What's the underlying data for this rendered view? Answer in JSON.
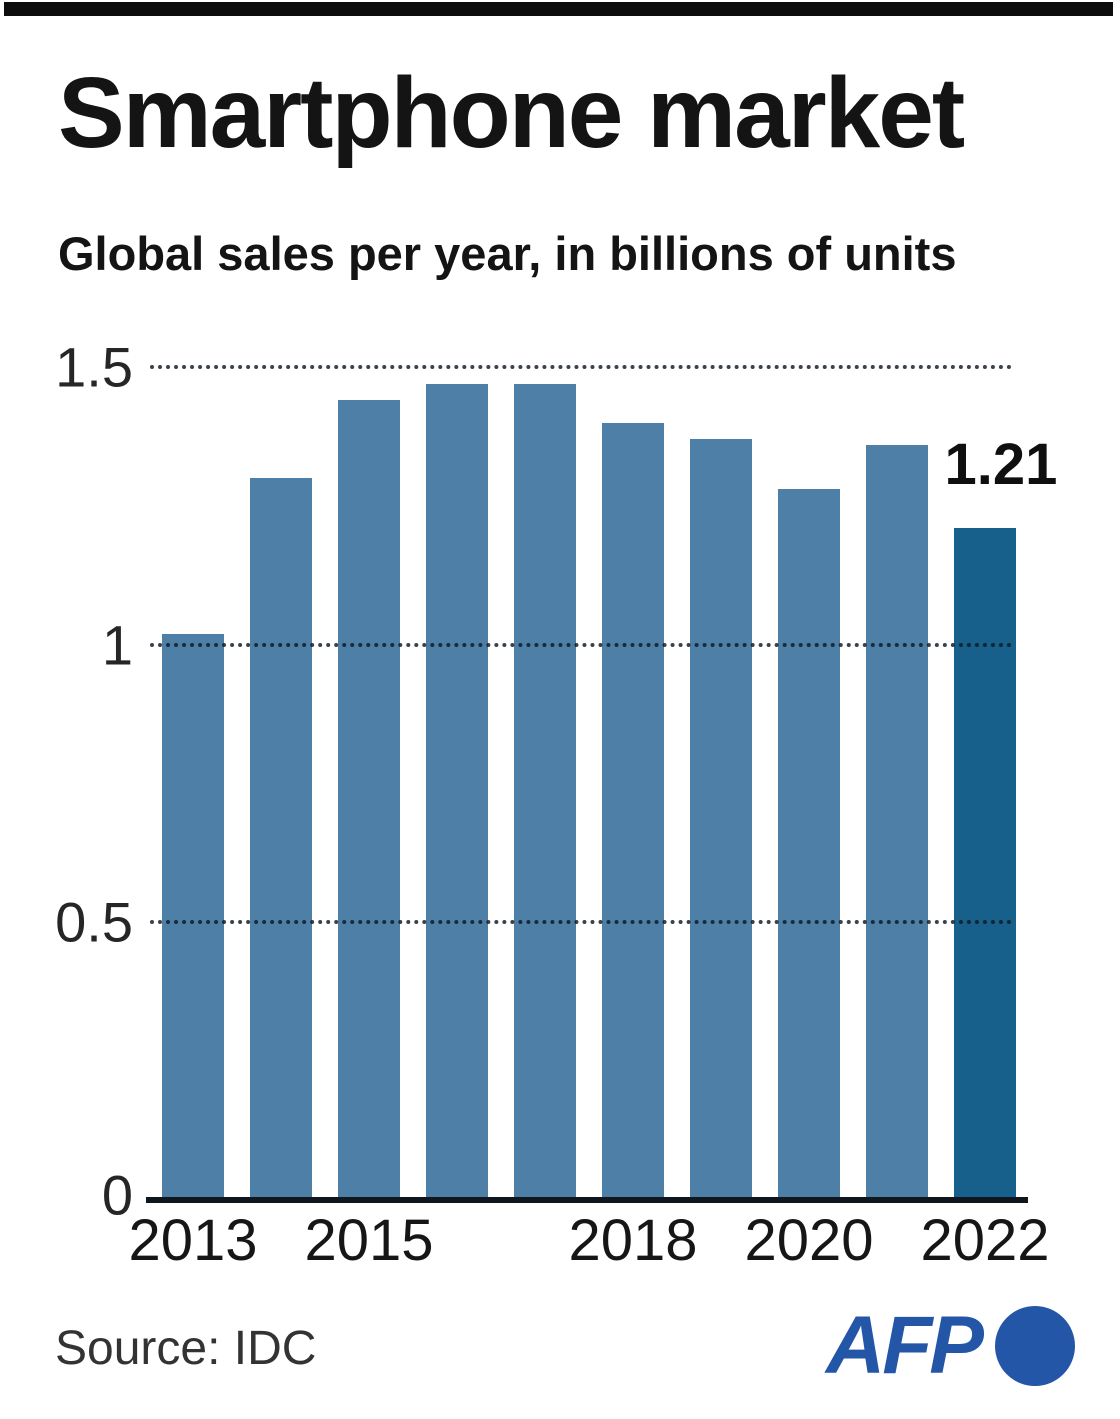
{
  "header": {
    "title": "Smartphone market",
    "subtitle": "Global sales per year, in billions of units"
  },
  "chart_data": {
    "type": "bar",
    "title": "Smartphone market",
    "subtitle": "Global sales per year, in billions of units",
    "categories": [
      "2013",
      "2014",
      "2015",
      "2016",
      "2017",
      "2018",
      "2019",
      "2020",
      "2021",
      "2022"
    ],
    "values": [
      1.02,
      1.3,
      1.44,
      1.47,
      1.47,
      1.4,
      1.37,
      1.28,
      1.36,
      1.21
    ],
    "unit": "billions of units",
    "ylim": [
      0,
      1.55
    ],
    "yticks": [
      {
        "value": 0,
        "label": "0"
      },
      {
        "value": 0.5,
        "label": "0.5"
      },
      {
        "value": 1,
        "label": "1"
      },
      {
        "value": 1.5,
        "label": "1.5"
      }
    ],
    "visible_year_labels": [
      "2013",
      "2015",
      "2018",
      "2020",
      "2022"
    ],
    "highlight_index": 9,
    "highlight_label": "1.21",
    "bar_color": "#4e7fa7",
    "highlight_color": "#17608c",
    "grid": "horizontal dotted, drawn over bars",
    "legend": "none"
  },
  "footer": {
    "source": "Source: IDC",
    "logo_text": "AFP",
    "logo_color": "#2456a7"
  }
}
